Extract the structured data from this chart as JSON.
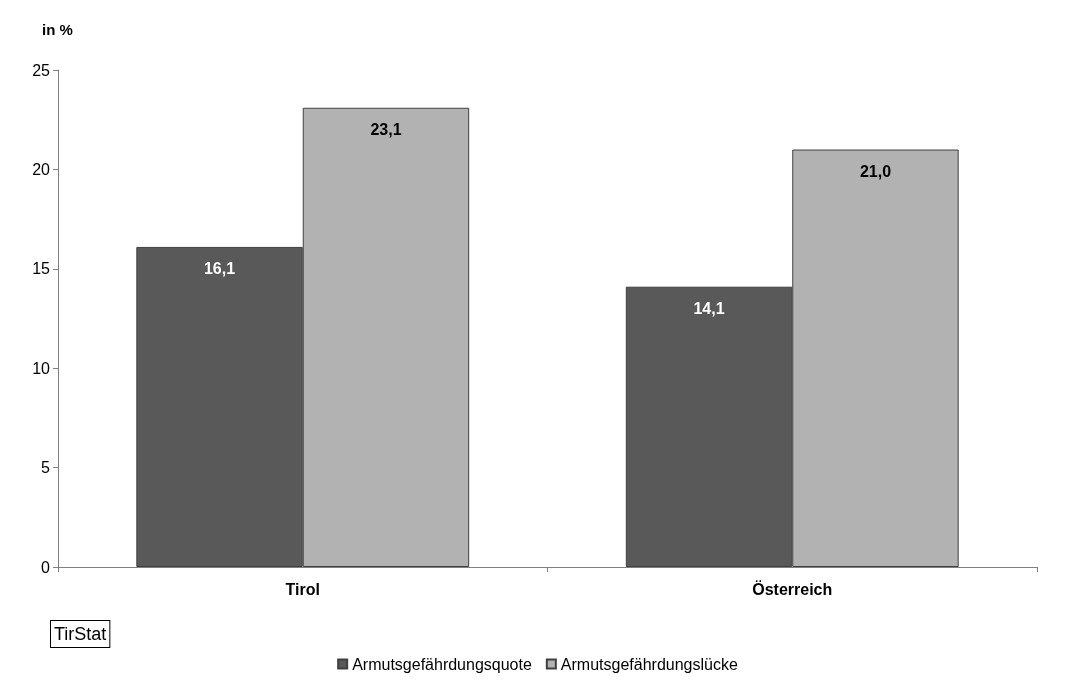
{
  "chart_data": {
    "type": "bar",
    "ylabel": "in %",
    "categories": [
      "Tirol",
      "Österreich"
    ],
    "series": [
      {
        "name": "Armutsgefährdungsquote",
        "color": "#595959",
        "values": [
          16.1,
          14.1
        ],
        "value_labels": [
          "16,1",
          "14,1"
        ]
      },
      {
        "name": "Armutsgefährdungslücke",
        "color": "#b2b2b2",
        "values": [
          23.1,
          21.0
        ],
        "value_labels": [
          "23,1",
          "21,0"
        ]
      }
    ],
    "ylim": [
      0,
      25
    ],
    "yticks": [
      0,
      5,
      10,
      15,
      20,
      25
    ],
    "grid": false,
    "legend": "bottom",
    "annotations": [
      "TirStat"
    ]
  }
}
